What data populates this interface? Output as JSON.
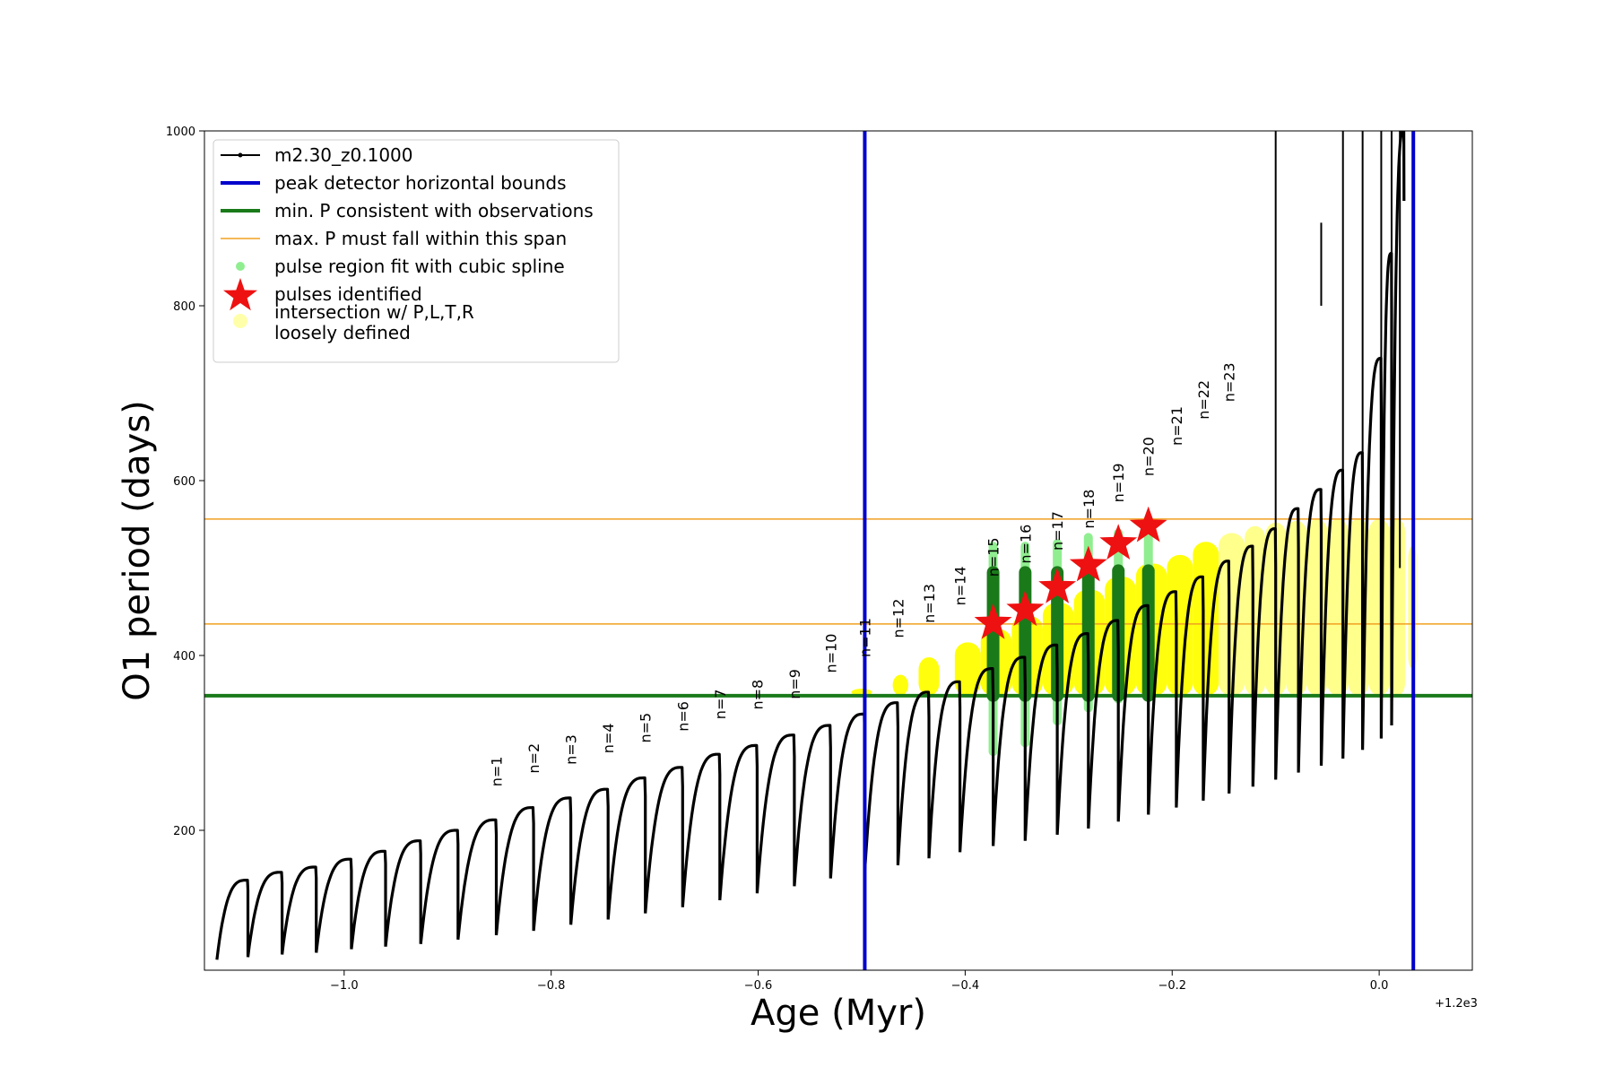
{
  "chart_data": {
    "type": "line",
    "xlabel": "Age (Myr)",
    "ylabel": "O1 period (days)",
    "x_offset_label": "+1.2e3",
    "xlim": [
      -1.135,
      0.09
    ],
    "ylim": [
      40,
      1000
    ],
    "x_ticks": [
      {
        "value": -1.0,
        "label": "−1.0"
      },
      {
        "value": -0.8,
        "label": "−0.8"
      },
      {
        "value": -0.6,
        "label": "−0.6"
      },
      {
        "value": -0.4,
        "label": "−0.4"
      },
      {
        "value": -0.2,
        "label": "−0.2"
      },
      {
        "value": 0.0,
        "label": "0.0"
      }
    ],
    "y_ticks": [
      {
        "value": 200,
        "label": "200"
      },
      {
        "value": 400,
        "label": "400"
      },
      {
        "value": 600,
        "label": "600"
      },
      {
        "value": 800,
        "label": "800"
      },
      {
        "value": 1000,
        "label": "1000"
      }
    ],
    "legend_position": "top-left",
    "legend": [
      {
        "label": "m2.30_z0.1000",
        "kind": "line-dot",
        "color": "#000000"
      },
      {
        "label": "peak detector horizontal bounds",
        "kind": "line",
        "color": "#0000cc"
      },
      {
        "label": "min. P consistent with observations",
        "kind": "line",
        "color": "#1a7a1a"
      },
      {
        "label": "max. P must fall within this span",
        "kind": "line",
        "color": "#f0a020"
      },
      {
        "label": "pulse region fit with cubic spline",
        "kind": "dot",
        "color": "#90ee90"
      },
      {
        "label": "pulses identified",
        "kind": "star",
        "color": "#ee1111"
      },
      {
        "label": "intersection w/ P,L,T,R",
        "label2": "loosely defined",
        "kind": "dot",
        "color": "#ffffaa"
      }
    ],
    "blue_vlines": [
      -0.497,
      0.033
    ],
    "green_hline": 354,
    "orange_hlines": [
      436,
      556
    ],
    "track": {
      "name": "m2.30_z0.1000",
      "pulses": [
        {
          "start": -1.123,
          "end": -1.093,
          "min": 52,
          "peak": 143
        },
        {
          "start": -1.093,
          "end": -1.06,
          "min": 55,
          "peak": 152
        },
        {
          "start": -1.06,
          "end": -1.027,
          "min": 58,
          "peak": 158
        },
        {
          "start": -1.027,
          "end": -0.993,
          "min": 60,
          "peak": 167
        },
        {
          "start": -0.993,
          "end": -0.96,
          "min": 64,
          "peak": 176
        },
        {
          "start": -0.96,
          "end": -0.926,
          "min": 67,
          "peak": 188
        },
        {
          "start": -0.926,
          "end": -0.89,
          "min": 70,
          "peak": 200
        },
        {
          "start": -0.89,
          "end": -0.853,
          "min": 75,
          "peak": 212
        },
        {
          "start": -0.853,
          "end": -0.817,
          "min": 80,
          "peak": 226
        },
        {
          "start": -0.817,
          "end": -0.781,
          "min": 85,
          "peak": 237
        },
        {
          "start": -0.781,
          "end": -0.745,
          "min": 92,
          "peak": 247
        },
        {
          "start": -0.745,
          "end": -0.709,
          "min": 98,
          "peak": 260
        },
        {
          "start": -0.709,
          "end": -0.673,
          "min": 105,
          "peak": 272
        },
        {
          "start": -0.673,
          "end": -0.637,
          "min": 112,
          "peak": 287
        },
        {
          "start": -0.637,
          "end": -0.601,
          "min": 120,
          "peak": 297
        },
        {
          "start": -0.601,
          "end": -0.565,
          "min": 128,
          "peak": 309
        },
        {
          "start": -0.565,
          "end": -0.53,
          "min": 136,
          "peak": 320
        },
        {
          "start": -0.53,
          "end": -0.497,
          "min": 145,
          "peak": 333
        },
        {
          "start": -0.497,
          "end": -0.465,
          "min": 153,
          "peak": 346
        },
        {
          "start": -0.465,
          "end": -0.435,
          "min": 160,
          "peak": 358
        },
        {
          "start": -0.435,
          "end": -0.405,
          "min": 168,
          "peak": 370
        },
        {
          "start": -0.405,
          "end": -0.373,
          "min": 175,
          "peak": 385
        },
        {
          "start": -0.373,
          "end": -0.342,
          "min": 182,
          "peak": 398
        },
        {
          "start": -0.342,
          "end": -0.311,
          "min": 188,
          "peak": 412
        },
        {
          "start": -0.311,
          "end": -0.281,
          "min": 195,
          "peak": 425
        },
        {
          "start": -0.281,
          "end": -0.252,
          "min": 202,
          "peak": 440
        },
        {
          "start": -0.252,
          "end": -0.223,
          "min": 210,
          "peak": 457
        },
        {
          "start": -0.223,
          "end": -0.196,
          "min": 218,
          "peak": 473
        },
        {
          "start": -0.196,
          "end": -0.17,
          "min": 226,
          "peak": 490
        },
        {
          "start": -0.17,
          "end": -0.145,
          "min": 234,
          "peak": 508
        },
        {
          "start": -0.145,
          "end": -0.122,
          "min": 242,
          "peak": 525
        },
        {
          "start": -0.122,
          "end": -0.1,
          "min": 250,
          "peak": 545
        },
        {
          "start": -0.1,
          "end": -0.078,
          "min": 258,
          "peak": 568
        },
        {
          "start": -0.078,
          "end": -0.056,
          "min": 266,
          "peak": 590
        },
        {
          "start": -0.056,
          "end": -0.035,
          "min": 274,
          "peak": 612
        },
        {
          "start": -0.035,
          "end": -0.016,
          "min": 282,
          "peak": 632
        },
        {
          "start": -0.016,
          "end": 0.002,
          "min": 292,
          "peak": 740
        },
        {
          "start": 0.002,
          "end": 0.012,
          "min": 305,
          "peak": 860
        },
        {
          "start": 0.012,
          "end": 0.024,
          "min": 320,
          "peak": 1000
        }
      ]
    },
    "pulse_labels": [
      {
        "label": "n=1",
        "x": -0.853,
        "y": 250
      },
      {
        "label": "n=2",
        "x": -0.817,
        "y": 265
      },
      {
        "label": "n=3",
        "x": -0.781,
        "y": 275
      },
      {
        "label": "n=4",
        "x": -0.745,
        "y": 288
      },
      {
        "label": "n=5",
        "x": -0.709,
        "y": 300
      },
      {
        "label": "n=6",
        "x": -0.673,
        "y": 313
      },
      {
        "label": "n=7",
        "x": -0.637,
        "y": 327
      },
      {
        "label": "n=8",
        "x": -0.601,
        "y": 338
      },
      {
        "label": "n=9",
        "x": -0.565,
        "y": 350
      },
      {
        "label": "n=10",
        "x": -0.53,
        "y": 380
      },
      {
        "label": "n=11",
        "x": -0.497,
        "y": 398
      },
      {
        "label": "n=12",
        "x": -0.465,
        "y": 420
      },
      {
        "label": "n=13",
        "x": -0.435,
        "y": 437
      },
      {
        "label": "n=14",
        "x": -0.405,
        "y": 457
      },
      {
        "label": "n=15",
        "x": -0.373,
        "y": 490
      },
      {
        "label": "n=16",
        "x": -0.342,
        "y": 505
      },
      {
        "label": "n=17",
        "x": -0.311,
        "y": 520
      },
      {
        "label": "n=18",
        "x": -0.281,
        "y": 545
      },
      {
        "label": "n=19",
        "x": -0.252,
        "y": 575
      },
      {
        "label": "n=20",
        "x": -0.223,
        "y": 605
      },
      {
        "label": "n=21",
        "x": -0.196,
        "y": 640
      },
      {
        "label": "n=22",
        "x": -0.17,
        "y": 670
      },
      {
        "label": "n=23",
        "x": -0.145,
        "y": 690
      }
    ],
    "identified_pulses": [
      {
        "n": 15,
        "x": -0.373,
        "y": 437
      },
      {
        "n": 16,
        "x": -0.342,
        "y": 452
      },
      {
        "n": 17,
        "x": -0.311,
        "y": 478
      },
      {
        "n": 18,
        "x": -0.281,
        "y": 503
      },
      {
        "n": 19,
        "x": -0.252,
        "y": 528
      },
      {
        "n": 20,
        "x": -0.223,
        "y": 548
      }
    ],
    "spline_regions": [
      {
        "x": -0.373,
        "y_min": 290,
        "y_max": 525
      },
      {
        "x": -0.342,
        "y_min": 300,
        "y_max": 525
      },
      {
        "x": -0.311,
        "y_min": 325,
        "y_max": 528
      },
      {
        "x": -0.281,
        "y_min": 340,
        "y_max": 535
      },
      {
        "x": -0.252,
        "y_min": 350,
        "y_max": 540
      },
      {
        "x": -0.223,
        "y_min": 355,
        "y_max": 548
      }
    ],
    "green_bands": [
      {
        "x": -0.373,
        "y_min": 354,
        "y_max": 495
      },
      {
        "x": -0.342,
        "y_min": 354,
        "y_max": 495
      },
      {
        "x": -0.311,
        "y_min": 354,
        "y_max": 495
      },
      {
        "x": -0.281,
        "y_min": 354,
        "y_max": 497
      },
      {
        "x": -0.252,
        "y_min": 354,
        "y_max": 497
      },
      {
        "x": -0.223,
        "y_min": 354,
        "y_max": 497
      }
    ],
    "intersection_regions": [
      {
        "x0": -0.51,
        "x1": -0.49,
        "y0": 354,
        "y1": 362
      },
      {
        "x0": -0.47,
        "x1": -0.455,
        "y0": 354,
        "y1": 378
      },
      {
        "x0": -0.445,
        "x1": -0.425,
        "y0": 354,
        "y1": 398
      },
      {
        "x0": -0.41,
        "x1": -0.385,
        "y0": 354,
        "y1": 415
      },
      {
        "x0": -0.385,
        "x1": -0.355,
        "y0": 354,
        "y1": 430
      },
      {
        "x0": -0.355,
        "x1": -0.325,
        "y0": 354,
        "y1": 445
      },
      {
        "x0": -0.325,
        "x1": -0.295,
        "y0": 354,
        "y1": 460
      },
      {
        "x0": -0.295,
        "x1": -0.265,
        "y0": 354,
        "y1": 475
      },
      {
        "x0": -0.265,
        "x1": -0.235,
        "y0": 354,
        "y1": 490
      },
      {
        "x0": -0.235,
        "x1": -0.205,
        "y0": 354,
        "y1": 505
      },
      {
        "x0": -0.205,
        "x1": -0.18,
        "y0": 354,
        "y1": 515
      },
      {
        "x0": -0.18,
        "x1": -0.155,
        "y0": 354,
        "y1": 530
      },
      {
        "x0": -0.155,
        "x1": -0.13,
        "y0": 354,
        "y1": 540
      },
      {
        "x0": -0.13,
        "x1": -0.11,
        "y0": 354,
        "y1": 548
      },
      {
        "x0": -0.11,
        "x1": -0.09,
        "y0": 354,
        "y1": 552
      },
      {
        "x0": -0.09,
        "x1": -0.07,
        "y0": 354,
        "y1": 554
      },
      {
        "x0": -0.07,
        "x1": -0.05,
        "y0": 354,
        "y1": 556
      },
      {
        "x0": -0.05,
        "x1": -0.03,
        "y0": 354,
        "y1": 556
      },
      {
        "x0": -0.03,
        "x1": -0.01,
        "y0": 354,
        "y1": 556
      },
      {
        "x0": -0.01,
        "x1": 0.01,
        "y0": 354,
        "y1": 556
      },
      {
        "x0": 0.01,
        "x1": 0.025,
        "y0": 354,
        "y1": 556
      },
      {
        "x0": 0.028,
        "x1": 0.036,
        "y0": 385,
        "y1": 525
      }
    ],
    "spikes": [
      {
        "x": -0.1,
        "y_min": 300,
        "y_max": 1000
      },
      {
        "x": -0.056,
        "y_min": 800,
        "y_max": 895
      },
      {
        "x": -0.035,
        "y_min": 420,
        "y_max": 1000
      },
      {
        "x": -0.016,
        "y_min": 350,
        "y_max": 1000
      },
      {
        "x": 0.002,
        "y_min": 380,
        "y_max": 1000
      },
      {
        "x": 0.012,
        "y_min": 340,
        "y_max": 1000
      },
      {
        "x": 0.02,
        "y_min": 500,
        "y_max": 1000
      }
    ]
  }
}
